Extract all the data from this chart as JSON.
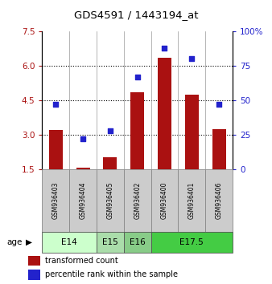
{
  "title": "GDS4591 / 1443194_at",
  "samples": [
    "GSM936403",
    "GSM936404",
    "GSM936405",
    "GSM936402",
    "GSM936400",
    "GSM936401",
    "GSM936406"
  ],
  "transformed_count": [
    3.2,
    1.57,
    2.0,
    4.85,
    6.35,
    4.75,
    3.25
  ],
  "percentile_rank": [
    47,
    22,
    28,
    67,
    88,
    80,
    47
  ],
  "ylim_left": [
    1.5,
    7.5
  ],
  "ylim_right": [
    0,
    100
  ],
  "yticks_left": [
    1.5,
    3.0,
    4.5,
    6.0,
    7.5
  ],
  "yticks_right": [
    0,
    25,
    50,
    75,
    100
  ],
  "bar_color": "#AA1111",
  "dot_color": "#2222CC",
  "age_groups": [
    {
      "label": "E14",
      "start": 0,
      "end": 2,
      "color": "#CCFFCC"
    },
    {
      "label": "E15",
      "start": 2,
      "end": 3,
      "color": "#AADDAA"
    },
    {
      "label": "E16",
      "start": 3,
      "end": 4,
      "color": "#88CC88"
    },
    {
      "label": "E17.5",
      "start": 4,
      "end": 7,
      "color": "#44CC44"
    }
  ],
  "legend_bar_label": "transformed count",
  "legend_dot_label": "percentile rank within the sample",
  "grid_dotted_at": [
    3.0,
    4.5,
    6.0
  ],
  "sample_box_color": "#CCCCCC",
  "bar_width": 0.5
}
